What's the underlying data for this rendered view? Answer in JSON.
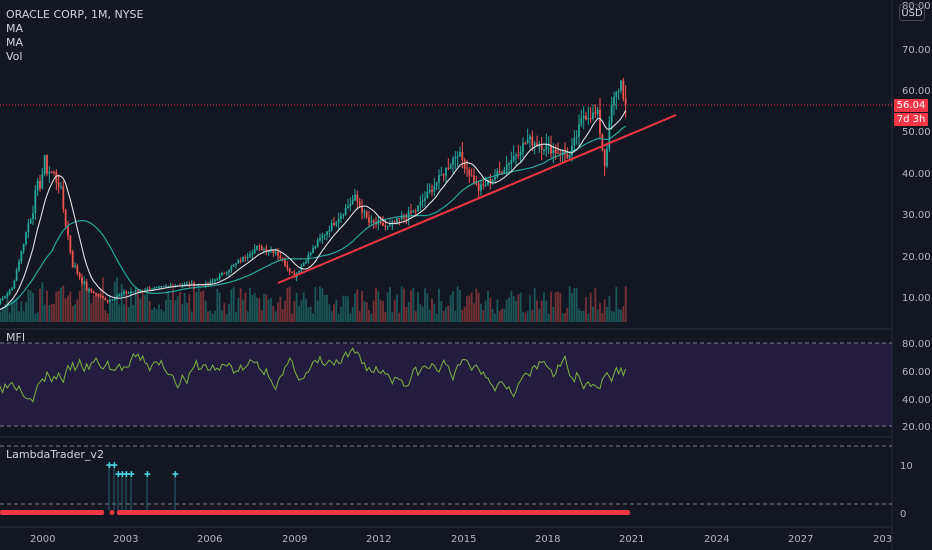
{
  "header": {
    "symbol_title": "ORACLE CORP, 1M, NYSE",
    "indicators": [
      "MA",
      "MA",
      "Vol"
    ],
    "currency_button": "USD"
  },
  "price_axis": {
    "ticks": [
      "70.00",
      "60.00",
      "50.00",
      "40.00",
      "30.00",
      "20.00",
      "10.00"
    ],
    "top_partial": "80.00",
    "last_price": "56.04",
    "countdown": "7d 3h"
  },
  "mfi_pane": {
    "title": "MFI",
    "ticks": [
      "80.00",
      "60.00",
      "40.00",
      "20.00"
    ]
  },
  "lambda_pane": {
    "title": "LambdaTrader_v2",
    "ticks": [
      "10",
      "0"
    ]
  },
  "time_axis": {
    "ticks": [
      "2000",
      "2003",
      "2006",
      "2009",
      "2012",
      "2015",
      "2018",
      "2021",
      "2024",
      "2027",
      "203"
    ]
  },
  "colors": {
    "background": "#131722",
    "up_candle": "#26a69a",
    "down_candle": "#ef5350",
    "trendline": "#f23645",
    "ma_fast": "#ffffff",
    "ma_slow": "#26a69a",
    "mfi_line": "#7cb342",
    "mfi_band": "#2a1f4a",
    "lambda_bar": "#f23645",
    "lambda_marker": "#4dd0e1"
  },
  "chart_data": {
    "type": "candlestick",
    "title": "ORACLE CORP, 1M, NYSE",
    "x_axis_years": [
      "2000",
      "2003",
      "2006",
      "2009",
      "2012",
      "2015",
      "2018",
      "2021",
      "2024",
      "2027"
    ],
    "ylim": [
      5,
      80
    ],
    "last_price": 56.04,
    "trendline": {
      "from": [
        "2008-11",
        13
      ],
      "to": [
        "2022-06",
        54
      ]
    },
    "approx_path": [
      [
        "1998-01",
        5
      ],
      [
        "1999-01",
        12
      ],
      [
        "1999-09",
        30
      ],
      [
        "2000-03",
        42
      ],
      [
        "2000-09",
        38
      ],
      [
        "2001-03",
        18
      ],
      [
        "2001-09",
        12
      ],
      [
        "2002-06",
        9
      ],
      [
        "2003-01",
        11
      ],
      [
        "2004-01",
        12
      ],
      [
        "2005-01",
        13
      ],
      [
        "2006-01",
        13
      ],
      [
        "2007-01",
        18
      ],
      [
        "2007-10",
        22
      ],
      [
        "2008-06",
        21
      ],
      [
        "2009-02",
        15
      ],
      [
        "2010-01",
        24
      ],
      [
        "2011-04",
        34
      ],
      [
        "2011-10",
        28
      ],
      [
        "2012-06",
        27
      ],
      [
        "2013-06",
        31
      ],
      [
        "2014-06",
        40
      ],
      [
        "2014-12",
        45
      ],
      [
        "2015-09",
        36
      ],
      [
        "2016-06",
        40
      ],
      [
        "2017-06",
        48
      ],
      [
        "2018-03",
        46
      ],
      [
        "2018-12",
        44
      ],
      [
        "2019-06",
        54
      ],
      [
        "2019-12",
        54
      ],
      [
        "2020-03",
        42
      ],
      [
        "2020-06",
        56
      ],
      [
        "2020-10",
        62
      ],
      [
        "2020-12",
        56
      ]
    ]
  }
}
